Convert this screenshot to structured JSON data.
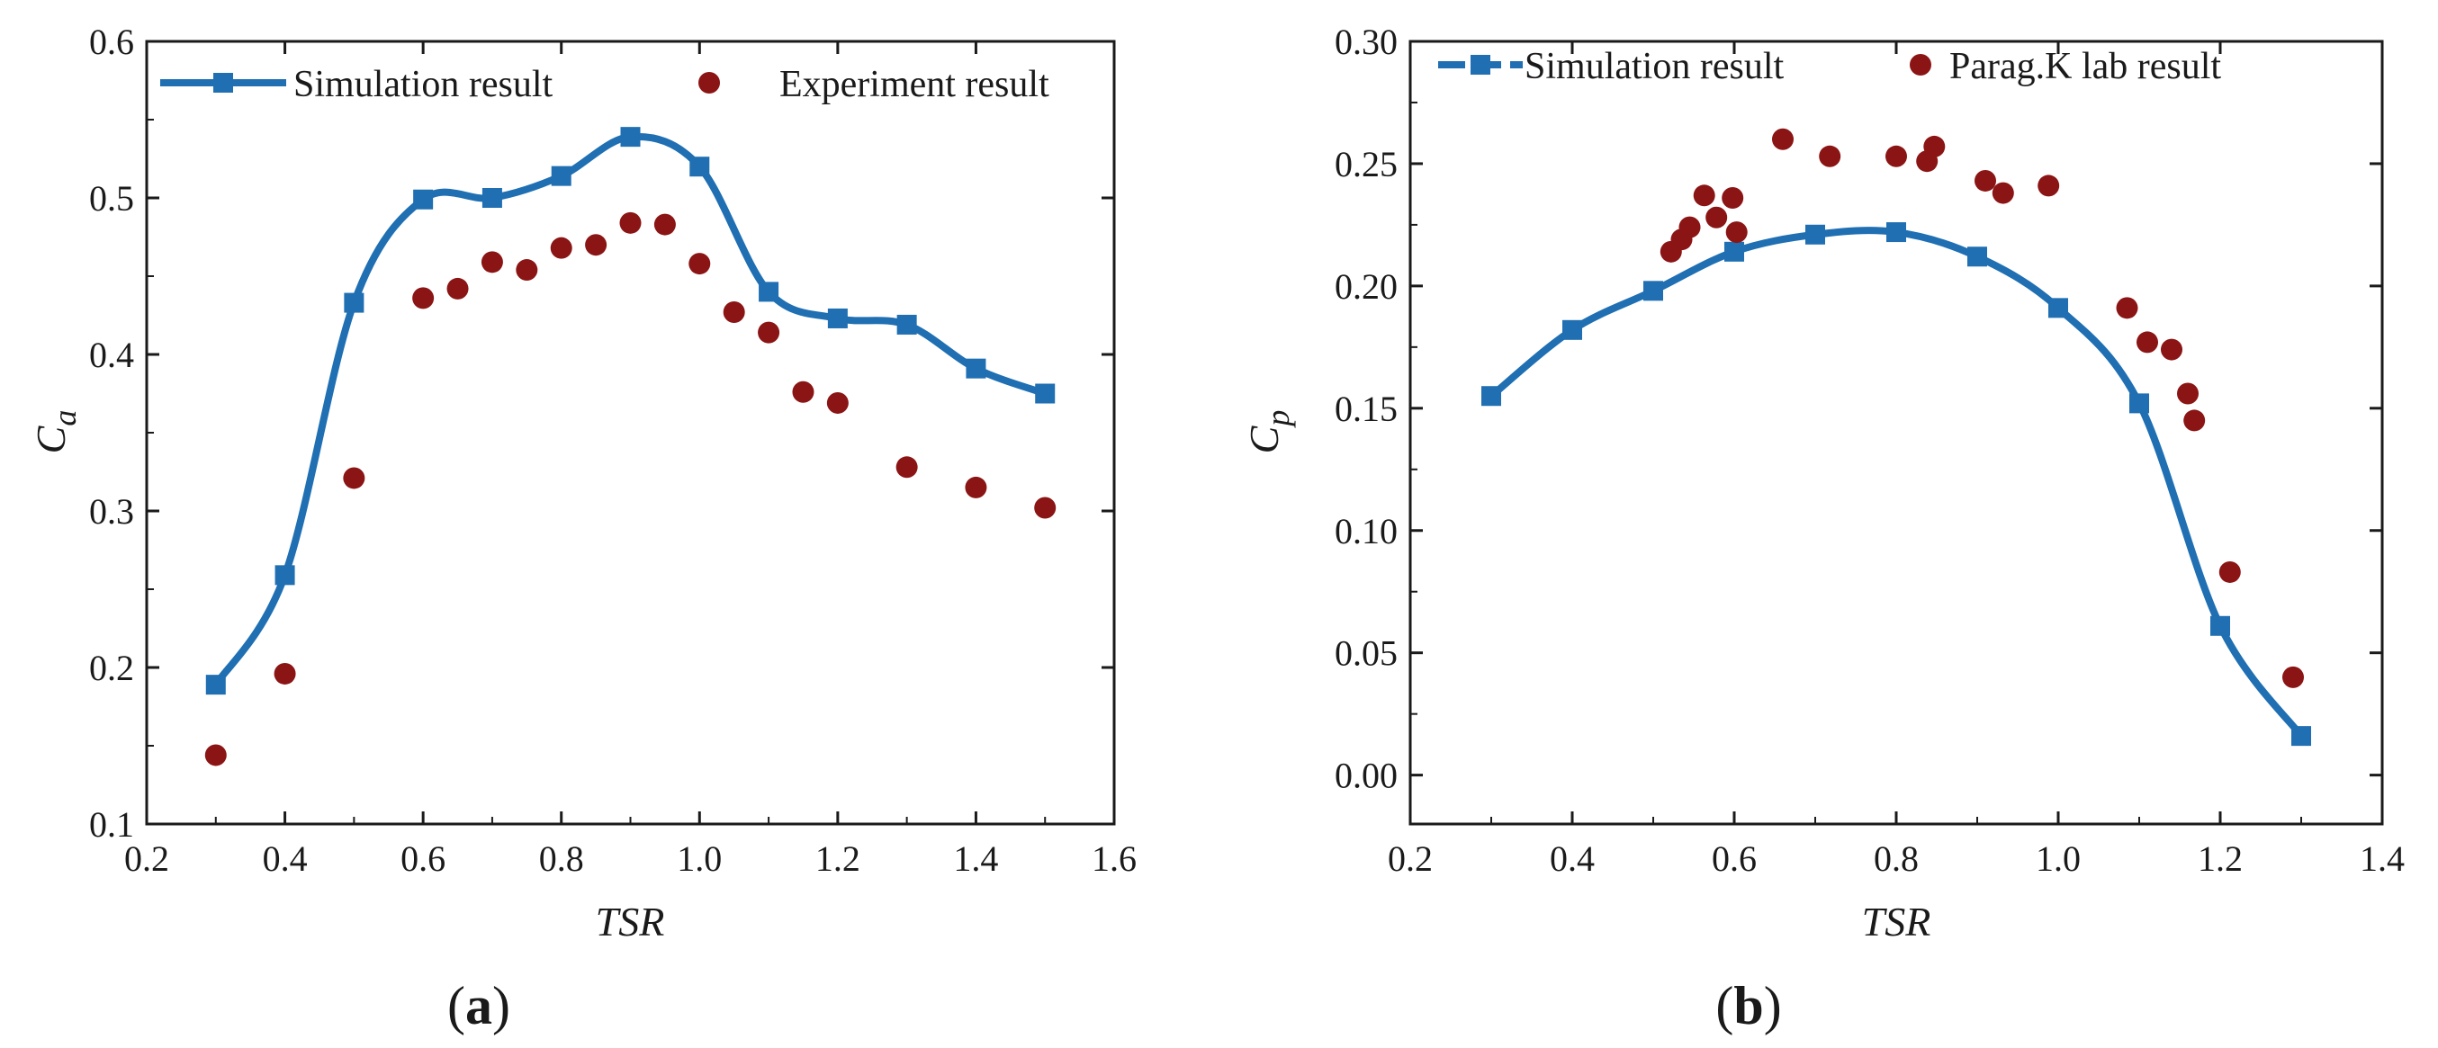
{
  "colors": {
    "sim": "#1f6fb2",
    "exp": "#8b1414",
    "axis": "#1a1a1a"
  },
  "chart_data": [
    {
      "type": "line",
      "panel_label": {
        "open": "(",
        "letter": "a",
        "close": ")"
      },
      "xlabel": "TSR",
      "ylabel": {
        "base": "C",
        "sub": "a"
      },
      "xlim": [
        0.2,
        1.6
      ],
      "ylim": [
        0.1,
        0.6
      ],
      "xticks": [
        "0.2",
        "0.4",
        "0.6",
        "0.8",
        "1.0",
        "1.2",
        "1.4",
        "1.6"
      ],
      "yticks": [
        "0.1",
        "0.2",
        "0.3",
        "0.4",
        "0.5",
        "0.6"
      ],
      "legend_position": "top",
      "series": [
        {
          "name": "Simulation result",
          "kind": "line-square",
          "x": [
            0.3,
            0.4,
            0.5,
            0.6,
            0.7,
            0.8,
            0.9,
            1.0,
            1.1,
            1.2,
            1.3,
            1.4,
            1.5
          ],
          "y": [
            0.189,
            0.259,
            0.433,
            0.499,
            0.5,
            0.514,
            0.539,
            0.52,
            0.44,
            0.423,
            0.419,
            0.391,
            0.375
          ]
        },
        {
          "name": "Experiment result",
          "kind": "scatter-circle",
          "x": [
            0.3,
            0.4,
            0.5,
            0.6,
            0.65,
            0.7,
            0.75,
            0.8,
            0.85,
            0.9,
            0.95,
            1.0,
            1.05,
            1.1,
            1.15,
            1.2,
            1.3,
            1.4,
            1.5
          ],
          "y": [
            0.144,
            0.196,
            0.321,
            0.436,
            0.442,
            0.459,
            0.454,
            0.468,
            0.47,
            0.484,
            0.483,
            0.458,
            0.427,
            0.414,
            0.376,
            0.369,
            0.328,
            0.315,
            0.302
          ]
        }
      ]
    },
    {
      "type": "line",
      "panel_label": {
        "open": "(",
        "letter": "b",
        "close": ")"
      },
      "xlabel": "TSR",
      "ylabel": {
        "base": "C",
        "sub": "p"
      },
      "xlim": [
        0.2,
        1.4
      ],
      "ylim": [
        -0.02,
        0.3
      ],
      "xticks": [
        "0.2",
        "0.4",
        "0.6",
        "0.8",
        "1.0",
        "1.2",
        "1.4"
      ],
      "yticks": [
        "0.00",
        "0.05",
        "0.10",
        "0.15",
        "0.20",
        "0.25",
        "0.30"
      ],
      "legend_position": "top",
      "series": [
        {
          "name": "Simulation result",
          "kind": "line-square",
          "x": [
            0.3,
            0.4,
            0.5,
            0.6,
            0.7,
            0.8,
            0.9,
            1.0,
            1.1,
            1.2,
            1.3
          ],
          "y": [
            0.155,
            0.182,
            0.198,
            0.214,
            0.221,
            0.222,
            0.212,
            0.191,
            0.152,
            0.061,
            0.016
          ]
        },
        {
          "name": "Parag.K lab result",
          "kind": "scatter-circle",
          "x": [
            0.522,
            0.535,
            0.545,
            0.563,
            0.578,
            0.598,
            0.603,
            0.66,
            0.718,
            0.8,
            0.838,
            0.847,
            0.91,
            0.932,
            0.988,
            1.085,
            1.11,
            1.14,
            1.16,
            1.168,
            1.212,
            1.29
          ],
          "y": [
            0.214,
            0.219,
            0.224,
            0.237,
            0.228,
            0.236,
            0.222,
            0.26,
            0.253,
            0.253,
            0.251,
            0.257,
            0.243,
            0.238,
            0.241,
            0.191,
            0.177,
            0.174,
            0.156,
            0.145,
            0.083,
            0.04
          ]
        }
      ]
    }
  ]
}
